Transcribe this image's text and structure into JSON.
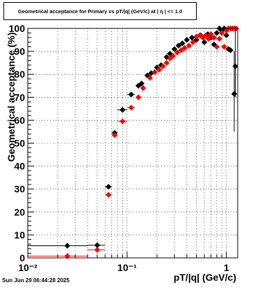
{
  "chart_data": {
    "type": "scatter",
    "title": "Geometrical acceptance for Primary vs pT/|q| (GeV/c) at |   η  | <= 1.0",
    "xlabel": "pT/|q| (GeV/c)",
    "ylabel": "Geometrical acceptance (%)",
    "x_scale": "log",
    "xlim": [
      0.01,
      1.3
    ],
    "ylim": [
      0,
      100
    ],
    "x_ticks": [
      {
        "value": 0.01,
        "label": "10⁻²"
      },
      {
        "value": 0.1,
        "label": "10⁻¹"
      },
      {
        "value": 1,
        "label": "1"
      }
    ],
    "y_ticks": [
      "0",
      "10",
      "20",
      "30",
      "40",
      "50",
      "60",
      "70",
      "80",
      "90",
      "100"
    ],
    "grid": true,
    "series": [
      {
        "color": "#000000",
        "marker": "diamond",
        "points": [
          {
            "x": 0.025,
            "y": 5.3,
            "xlo": 0.01,
            "xhi": 0.04
          },
          {
            "x": 0.05,
            "y": 5.5,
            "xlo": 0.04,
            "xhi": 0.06
          },
          {
            "x": 0.065,
            "y": 31,
            "xlo": 0.06,
            "xhi": 0.07
          },
          {
            "x": 0.075,
            "y": 54.5,
            "xlo": 0.07,
            "xhi": 0.08
          },
          {
            "x": 0.09,
            "y": 64.5,
            "xlo": 0.08,
            "xhi": 0.1
          },
          {
            "x": 0.11,
            "y": 71.2,
            "xlo": 0.1,
            "xhi": 0.12
          },
          {
            "x": 0.13,
            "y": 75.0
          },
          {
            "x": 0.14,
            "y": 76.0
          },
          {
            "x": 0.16,
            "y": 79.5
          },
          {
            "x": 0.175,
            "y": 80.5
          },
          {
            "x": 0.2,
            "y": 83.0
          },
          {
            "x": 0.22,
            "y": 84.0
          },
          {
            "x": 0.25,
            "y": 87.5
          },
          {
            "x": 0.27,
            "y": 89.0
          },
          {
            "x": 0.3,
            "y": 91.0
          },
          {
            "x": 0.33,
            "y": 92.5
          },
          {
            "x": 0.36,
            "y": 93.5
          },
          {
            "x": 0.4,
            "y": 95.0
          },
          {
            "x": 0.45,
            "y": 96.0
          },
          {
            "x": 0.5,
            "y": 95.0
          },
          {
            "x": 0.55,
            "y": 97.0
          },
          {
            "x": 0.6,
            "y": 94.0
          },
          {
            "x": 0.65,
            "y": 97.5
          },
          {
            "x": 0.7,
            "y": 96.0
          },
          {
            "x": 0.75,
            "y": 93.0
          },
          {
            "x": 0.8,
            "y": 98.0
          },
          {
            "x": 0.85,
            "y": 100.0
          },
          {
            "x": 0.9,
            "y": 99.0
          },
          {
            "x": 0.95,
            "y": 100.0
          },
          {
            "x": 1.0,
            "y": 97.0
          },
          {
            "x": 1.05,
            "y": 91.0
          },
          {
            "x": 1.1,
            "y": 90.5
          },
          {
            "x": 1.2,
            "y": 71.5,
            "ylo": 55,
            "yhi": 90
          },
          {
            "x": 1.23,
            "y": 83.5,
            "ylo": 70,
            "yhi": 100
          }
        ]
      },
      {
        "color": "#ff0000",
        "marker": "diamond",
        "points": [
          {
            "x": 0.025,
            "y": 0.8,
            "xlo": 0.01,
            "xhi": 0.04
          },
          {
            "x": 0.05,
            "y": 3.5,
            "xlo": 0.04,
            "xhi": 0.06
          },
          {
            "x": 0.065,
            "y": 27.5,
            "xlo": 0.06,
            "xhi": 0.07
          },
          {
            "x": 0.075,
            "y": 53.5,
            "xlo": 0.07,
            "xhi": 0.08
          },
          {
            "x": 0.09,
            "y": 59.5,
            "xlo": 0.08,
            "xhi": 0.1
          },
          {
            "x": 0.11,
            "y": 65.5,
            "xlo": 0.1,
            "xhi": 0.12
          },
          {
            "x": 0.13,
            "y": 70.0
          },
          {
            "x": 0.145,
            "y": 74.0
          },
          {
            "x": 0.17,
            "y": 78.5
          },
          {
            "x": 0.19,
            "y": 81.0
          },
          {
            "x": 0.21,
            "y": 82.0
          },
          {
            "x": 0.23,
            "y": 83.5
          },
          {
            "x": 0.25,
            "y": 85.0
          },
          {
            "x": 0.27,
            "y": 87.0
          },
          {
            "x": 0.29,
            "y": 88.0
          },
          {
            "x": 0.32,
            "y": 89.5
          },
          {
            "x": 0.35,
            "y": 90.5
          },
          {
            "x": 0.38,
            "y": 91.5
          },
          {
            "x": 0.42,
            "y": 92.5
          },
          {
            "x": 0.46,
            "y": 94.0
          },
          {
            "x": 0.5,
            "y": 96.5
          },
          {
            "x": 0.54,
            "y": 97.0
          },
          {
            "x": 0.58,
            "y": 96.0
          },
          {
            "x": 0.62,
            "y": 97.0
          },
          {
            "x": 0.66,
            "y": 95.5
          },
          {
            "x": 0.7,
            "y": 97.5
          },
          {
            "x": 0.75,
            "y": 96.0
          },
          {
            "x": 0.8,
            "y": 92.0
          },
          {
            "x": 0.85,
            "y": 95.5
          },
          {
            "x": 0.9,
            "y": 98.0
          },
          {
            "x": 0.95,
            "y": 92.0
          },
          {
            "x": 1.0,
            "y": 99.0
          },
          {
            "x": 1.05,
            "y": 100.0
          },
          {
            "x": 1.1,
            "y": 100.0
          },
          {
            "x": 1.15,
            "y": 100.0
          },
          {
            "x": 1.2,
            "y": 100.0
          },
          {
            "x": 1.25,
            "y": 100.0
          }
        ]
      }
    ]
  },
  "timestamp": "Sun Jun 29 06:44:28 2025"
}
